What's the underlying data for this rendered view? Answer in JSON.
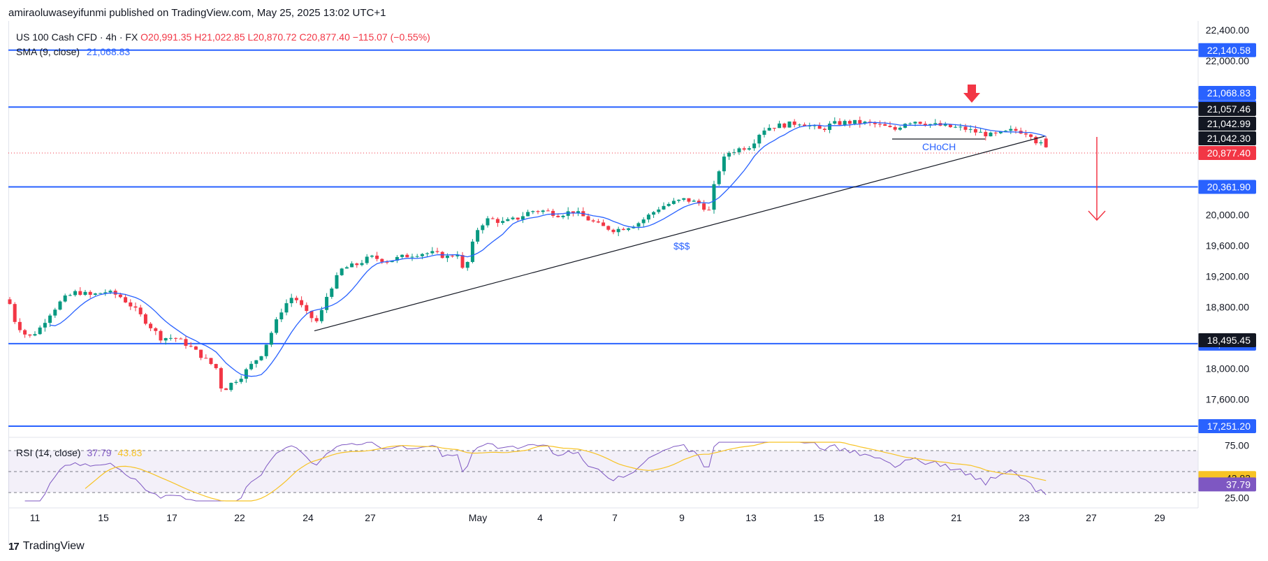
{
  "header": {
    "publisher_note": "amiraoluwaseyifunmi published on TradingView.com, May 25, 2025 13:02 UTC+1"
  },
  "legend": {
    "symbol": "US 100 Cash CFD · 4h · FX",
    "ohlc": "O20,991.35 H21,022.85 L20,870.72 C20,877.40 −115.07 (−0.55%)",
    "sma_label": "SMA (9, close)",
    "sma_value": "21,068.83"
  },
  "rsi_legend": {
    "label": "RSI (14, close)",
    "rsi_value": "37.79",
    "rsi_ma_value": "43.83"
  },
  "brand": {
    "name": "TradingView"
  },
  "colors": {
    "up": "#089981",
    "down": "#f23645",
    "sma": "#2962ff",
    "level": "#2962ff",
    "rsi": "#7e57c2",
    "rsi_ma": "#f7c325"
  },
  "chart_data": {
    "type": "candlestick",
    "title": "",
    "timeframe": "4h",
    "ylim": [
      17160,
      22520
    ],
    "y_ticks": [
      "22,400.00",
      "22,000.00",
      "20,000.00",
      "19,600.00",
      "19,200.00",
      "18,800.00",
      "18,000.00",
      "17,600.00"
    ],
    "x_ticks": [
      "11",
      "15",
      "17",
      "22",
      "24",
      "27",
      "May",
      "4",
      "7",
      "9",
      "13",
      "15",
      "18",
      "21",
      "23",
      "27",
      "29"
    ],
    "horizontal_levels": [
      {
        "value": 22140.58,
        "label": "22,140.58"
      },
      {
        "value": 21400.0,
        "label": "21,400.00"
      },
      {
        "value": 20361.9,
        "label": "20,361.90"
      },
      {
        "value": 18324.29,
        "label": "18,324.29"
      },
      {
        "value": 17251.2,
        "label": "17,251.20"
      }
    ],
    "price_labels": [
      {
        "label": "21,068.83",
        "kind": "sma"
      },
      {
        "label": "21,057.46",
        "kind": "dark"
      },
      {
        "label": "21,042.99",
        "kind": "dark"
      },
      {
        "label": "21,042.30",
        "kind": "dark"
      },
      {
        "label": "20,877.40",
        "kind": "last"
      },
      {
        "label": "18,495.45",
        "kind": "dark"
      }
    ],
    "annotations": [
      {
        "text": "CHoCH",
        "color": "#2962ff"
      },
      {
        "text": "$$$",
        "color": "#2962ff"
      }
    ],
    "trendline": {
      "from": {
        "x": "Apr 24",
        "y": 18490
      },
      "to": {
        "x": "May 23",
        "y": 21042
      }
    },
    "choch_line_y": 21042,
    "projection": {
      "from": 21000,
      "to": 20000,
      "direction": "down"
    },
    "series": [
      {
        "name": "SMA (9, close)",
        "values": "follows close"
      }
    ],
    "rsi": {
      "ylim": [
        20,
        80
      ],
      "y_ticks": [
        "75.00",
        "25.00"
      ],
      "bands": [
        70,
        50,
        30
      ],
      "last_rsi": 37.79,
      "last_ma": 43.83
    }
  }
}
